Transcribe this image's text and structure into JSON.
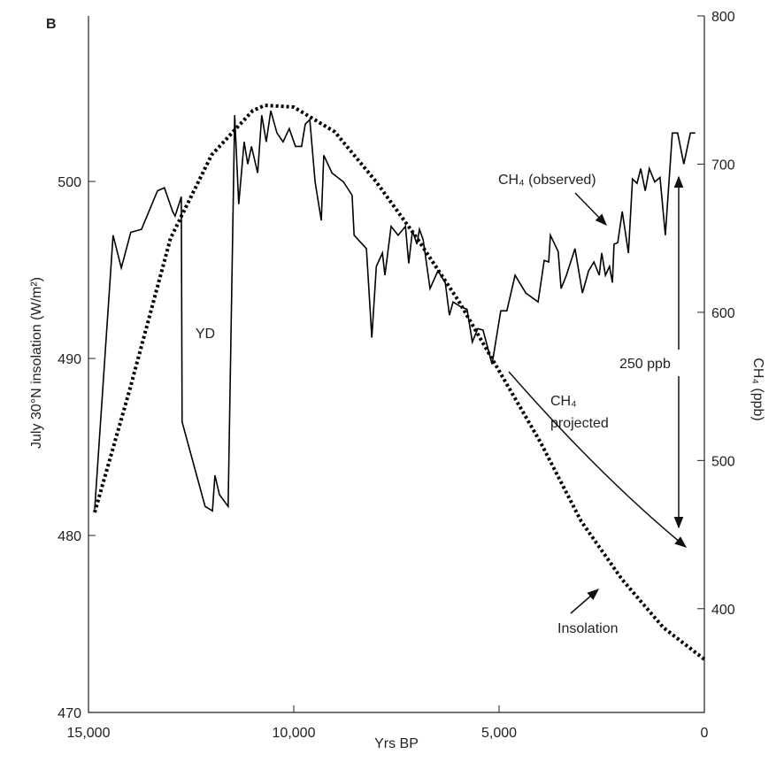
{
  "chart_data": {
    "type": "line",
    "panel_label": "B",
    "xlabel": "Yrs BP",
    "ylabel": "July 30°N insolation (W/m²)",
    "y2label": "CH₄ (ppb)",
    "xlim": [
      15000,
      0
    ],
    "xticks": [
      {
        "value": 15000,
        "label": "15,000"
      },
      {
        "value": 10000,
        "label": "10,000"
      },
      {
        "value": 5000,
        "label": "5,000"
      },
      0
    ],
    "ylim": [
      470,
      509.35
    ],
    "yticks": [
      470,
      480,
      490,
      500
    ],
    "y2lim": [
      330,
      800
    ],
    "y2ticks": [
      400,
      500,
      600,
      700,
      800
    ],
    "annotations": [
      "YD",
      "CH₄",
      "projected",
      "250 ppb"
    ],
    "series": [
      {
        "name": "Insolation",
        "color": "#000000",
        "style": "dotted",
        "axis": "y",
        "x": [
          14850,
          14000,
          13000,
          12000,
          11000,
          10700,
          10000,
          9000,
          8000,
          7000,
          6000,
          5000,
          4000,
          3000,
          2000,
          1000,
          0
        ],
        "values": [
          481.3,
          488.2,
          496.8,
          501.5,
          504,
          504.3,
          504.2,
          502.8,
          500,
          496.8,
          493.3,
          489.3,
          485.3,
          480.8,
          477.5,
          474.8,
          473
        ]
      },
      {
        "name": "CH₄ (observed)",
        "color": "#000000",
        "style": "solid",
        "axis": "y2",
        "x": [
          14850,
          14400,
          14200,
          13970,
          13710,
          13320,
          13150,
          12950,
          12890,
          12740,
          12720,
          12160,
          11980,
          11920,
          11810,
          11600,
          11440,
          11340,
          11210,
          11120,
          11030,
          10880,
          10780,
          10670,
          10560,
          10410,
          10260,
          10110,
          9960,
          9810,
          9720,
          9610,
          9480,
          9330,
          9270,
          9070,
          8790,
          8580,
          8530,
          8230,
          8100,
          7990,
          7840,
          7780,
          7630,
          7460,
          7280,
          7200,
          7110,
          7000,
          6940,
          6850,
          6680,
          6490,
          6310,
          6210,
          6120,
          5950,
          5780,
          5650,
          5520,
          5390,
          5170,
          4960,
          4810,
          4610,
          4350,
          4050,
          3900,
          3790,
          3750,
          3560,
          3490,
          3360,
          3150,
          2970,
          2820,
          2690,
          2560,
          2500,
          2410,
          2310,
          2240,
          2200,
          2110,
          2000,
          1850,
          1750,
          1640,
          1550,
          1440,
          1340,
          1210,
          1080,
          950,
          780,
          650,
          500,
          340,
          220
        ],
        "values": [
          467,
          652,
          630,
          654,
          656,
          682,
          684,
          668,
          665,
          678,
          526,
          469,
          466,
          490,
          477,
          469,
          733,
          673,
          715,
          700,
          712,
          694,
          733,
          715,
          736,
          721,
          715,
          724,
          712,
          712,
          727,
          730,
          688,
          662,
          706,
          694,
          688,
          679,
          652,
          643,
          583,
          631,
          640,
          625,
          658,
          652,
          658,
          633,
          655,
          646,
          656,
          649,
          616,
          628,
          620,
          598,
          607,
          604,
          602,
          580,
          589,
          588,
          565,
          601,
          601,
          625,
          613,
          607,
          635,
          634,
          652,
          641,
          616,
          625,
          643,
          613,
          628,
          634,
          625,
          640,
          625,
          631,
          620,
          646,
          647,
          668,
          640,
          690,
          687,
          697,
          682,
          697,
          688,
          691,
          652,
          721,
          721,
          700,
          721,
          721
        ]
      }
    ]
  }
}
